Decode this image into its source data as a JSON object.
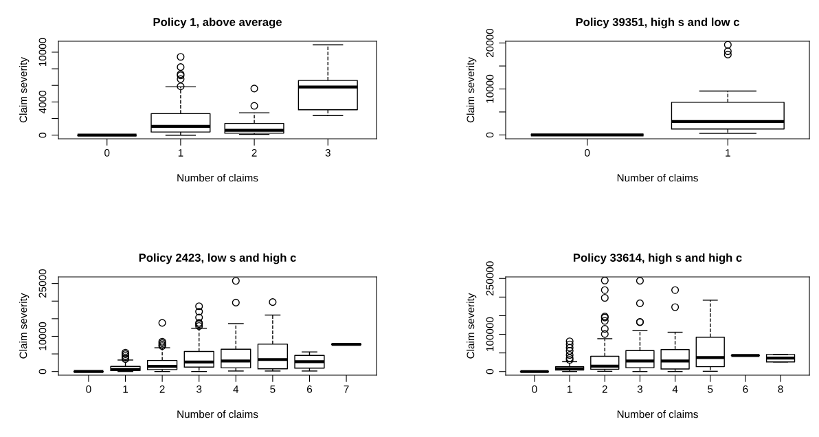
{
  "chart_data": [
    {
      "type": "box",
      "title": "Policy 1, above average",
      "xlabel": "Number of claims",
      "ylabel": "Claim severity",
      "categories": [
        "0",
        "1",
        "2",
        "3"
      ],
      "ylim": [
        -440,
        11320
      ],
      "yticks": [
        0,
        {
          "value": 2000,
          "label": null
        },
        4000,
        {
          "value": 6000,
          "label": null
        },
        {
          "value": 8000,
          "label": null
        },
        10000
      ],
      "boxes": [
        {
          "low": 0,
          "q1": 0,
          "median": 0,
          "q3": 0,
          "high": 0
        },
        {
          "low": 0,
          "q1": 380,
          "median": 1060,
          "q3": 2590,
          "high": 5820,
          "outliers": [
            5880,
            6760,
            7200,
            7350,
            8200,
            9440
          ]
        },
        {
          "low": 90,
          "q1": 235,
          "median": 590,
          "q3": 1410,
          "high": 2700,
          "outliers": [
            3530,
            5620
          ]
        },
        {
          "low": 2350,
          "q1": 3060,
          "median": 5800,
          "q3": 6590,
          "high": 10880
        }
      ]
    },
    {
      "type": "box",
      "title": "Policy 39351, high s and low c",
      "xlabel": "Number of claims",
      "ylabel": "Claim severity",
      "categories": [
        "0",
        "1"
      ],
      "ylim": [
        -840,
        20390
      ],
      "yticks": [
        0,
        {
          "value": 5000,
          "label": null
        },
        10000,
        {
          "value": 15000,
          "label": null
        },
        20000
      ],
      "boxes": [
        {
          "low": 0,
          "q1": 0,
          "median": 0,
          "q3": 0,
          "high": 0
        },
        {
          "low": 335,
          "q1": 1285,
          "median": 2905,
          "q3": 7095,
          "high": 9550,
          "outliers": [
            17490,
            18210,
            19610
          ]
        }
      ]
    },
    {
      "type": "box",
      "title": "Policy 2423, low s and high c",
      "xlabel": "Number of claims",
      "ylabel": "Claim severity",
      "categories": [
        "0",
        "1",
        "2",
        "3",
        "4",
        "5",
        "6",
        "7"
      ],
      "ylim": [
        -1040,
        26880
      ],
      "yticks": [
        0,
        {
          "value": 5000,
          "label": null
        },
        10000,
        {
          "value": 15000,
          "label": null
        },
        {
          "value": 20000,
          "label": null
        },
        25000
      ],
      "boxes": [
        {
          "low": 0,
          "q1": 0,
          "median": 0,
          "q3": 0,
          "high": 0
        },
        {
          "low": 0,
          "q1": 280,
          "median": 625,
          "q3": 1460,
          "high": 3260,
          "outliers": [
            3540,
            3960,
            4440,
            4930,
            5350
          ]
        },
        {
          "low": 0,
          "q1": 555,
          "median": 1460,
          "q3": 3125,
          "high": 6740,
          "outliers": [
            7220,
            7570,
            8060,
            8470,
            13820
          ]
        },
        {
          "low": 0,
          "q1": 1250,
          "median": 2710,
          "q3": 5690,
          "high": 12290,
          "outliers": [
            12920,
            13470,
            13820,
            15350,
            17010,
            18540
          ]
        },
        {
          "low": 140,
          "q1": 1040,
          "median": 2990,
          "q3": 6320,
          "high": 13610,
          "outliers": [
            19580,
            25760
          ]
        },
        {
          "low": 140,
          "q1": 760,
          "median": 3400,
          "q3": 7780,
          "high": 16040,
          "outliers": [
            19720
          ]
        },
        {
          "low": 140,
          "q1": 970,
          "median": 2780,
          "q3": 4580,
          "high": 5560
        },
        {
          "low": 7710,
          "q1": 7710,
          "median": 7710,
          "q3": 7710,
          "high": 7710
        }
      ]
    },
    {
      "type": "box",
      "title": "Policy 33614, high s and high c",
      "xlabel": "Number of claims",
      "ylabel": "Claim severity",
      "categories": [
        "0",
        "1",
        "2",
        "3",
        "4",
        "5",
        "6",
        "8"
      ],
      "ylim": [
        -9720,
        254170
      ],
      "yticks": [
        0,
        {
          "value": 50000,
          "label": null
        },
        100000,
        {
          "value": 150000,
          "label": null
        },
        {
          "value": 200000,
          "label": null
        },
        250000
      ],
      "boxes": [
        {
          "low": 0,
          "q1": 0,
          "median": 0,
          "q3": 0,
          "high": 0
        },
        {
          "low": 0,
          "q1": 4170,
          "median": 7640,
          "q3": 13190,
          "high": 26390,
          "outliers": [
            31250,
            36110,
            44440,
            55560,
            63890,
            72920,
            81250
          ]
        },
        {
          "low": 690,
          "q1": 6250,
          "median": 14580,
          "q3": 40970,
          "high": 88190,
          "outliers": [
            100690,
            114580,
            136110,
            145140,
            147920,
            197920,
            218750,
            244440
          ]
        },
        {
          "low": 0,
          "q1": 10420,
          "median": 28470,
          "q3": 56250,
          "high": 109720,
          "outliers": [
            132640,
            133330,
            183330,
            243750
          ]
        },
        {
          "low": 0,
          "q1": 6940,
          "median": 28470,
          "q3": 59030,
          "high": 105560,
          "outliers": [
            172920,
            218750
          ]
        },
        {
          "low": 690,
          "q1": 13190,
          "median": 37500,
          "q3": 92360,
          "high": 191670
        },
        {
          "low": 43060,
          "q1": 43060,
          "median": 43060,
          "q3": 43060,
          "high": 43060
        },
        {
          "low": 25690,
          "q1": 25690,
          "median": 36110,
          "q3": 45830,
          "high": 45830
        }
      ]
    }
  ]
}
